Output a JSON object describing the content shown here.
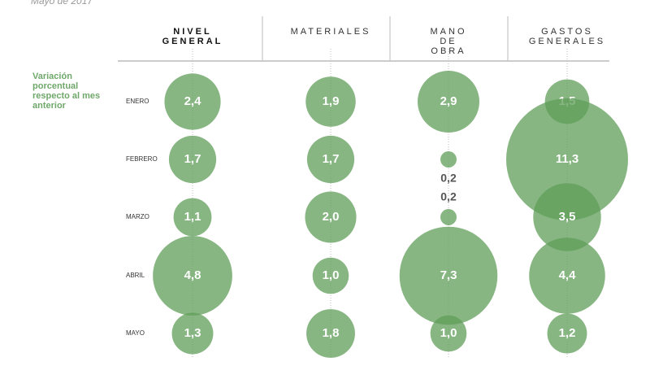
{
  "chart_data": {
    "type": "bubble",
    "subtitle": "Mayo de 2017",
    "annotation": "Variación porcentual respecto al mes anterior",
    "categories": [
      "ENERO",
      "FEBRERO",
      "MARZO",
      "ABRIL",
      "MAYO"
    ],
    "color": "#5f9e58",
    "series": [
      {
        "name": "NIVEL GENERAL",
        "values": [
          2.4,
          1.7,
          1.1,
          4.8,
          1.3
        ],
        "value_labels": [
          "2,4",
          "1,7",
          "1,1",
          "4,8",
          "1,3"
        ]
      },
      {
        "name": "MATERIALES",
        "values": [
          1.9,
          1.7,
          2.0,
          1.0,
          1.8
        ],
        "value_labels": [
          "1,9",
          "1,7",
          "2,0",
          "1,0",
          "1,8"
        ]
      },
      {
        "name": "MANO DE OBRA",
        "values": [
          2.9,
          0.2,
          0.2,
          7.3,
          1.0
        ],
        "value_labels": [
          "2,9",
          "0,2",
          "0,2",
          "7,3",
          "1,0"
        ]
      },
      {
        "name": "GASTOS GENERALES",
        "values": [
          1.5,
          11.3,
          3.5,
          4.4,
          1.2
        ],
        "value_labels": [
          "1,5",
          "11,3",
          "3,5",
          "4,4",
          "1,2"
        ]
      }
    ]
  }
}
